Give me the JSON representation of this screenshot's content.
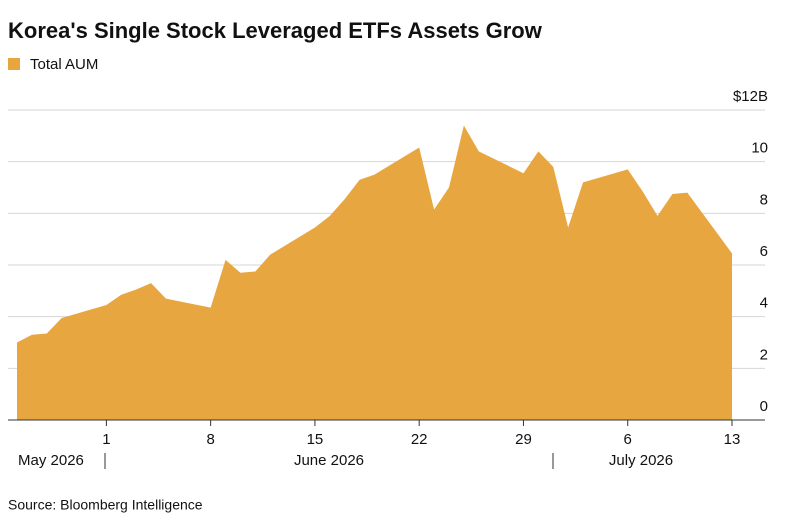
{
  "chart_data": {
    "type": "area",
    "title": "Korea's Single Stock Leveraged ETFs Assets Grow",
    "source": "Source: Bloomberg Intelligence",
    "series": [
      {
        "name": "Total AUM",
        "color": "#e8a640",
        "x": [
          "2026-05-26",
          "2026-05-27",
          "2026-05-28",
          "2026-05-29",
          "2026-06-01",
          "2026-06-02",
          "2026-06-03",
          "2026-06-04",
          "2026-06-05",
          "2026-06-08",
          "2026-06-09",
          "2026-06-10",
          "2026-06-11",
          "2026-06-12",
          "2026-06-15",
          "2026-06-16",
          "2026-06-17",
          "2026-06-18",
          "2026-06-19",
          "2026-06-22",
          "2026-06-23",
          "2026-06-24",
          "2026-06-25",
          "2026-06-26",
          "2026-06-29",
          "2026-06-30",
          "2026-07-01",
          "2026-07-02",
          "2026-07-03",
          "2026-07-06",
          "2026-07-07",
          "2026-07-08",
          "2026-07-09",
          "2026-07-10",
          "2026-07-13"
        ],
        "values": [
          3.0,
          3.3,
          3.35,
          3.95,
          4.45,
          4.85,
          5.05,
          5.3,
          4.7,
          4.35,
          6.2,
          5.7,
          5.75,
          6.4,
          7.45,
          7.9,
          8.55,
          9.3,
          9.5,
          10.55,
          8.15,
          9.0,
          11.4,
          10.4,
          9.55,
          10.4,
          9.8,
          7.45,
          9.2,
          9.7,
          8.85,
          7.9,
          8.75,
          8.8,
          6.45
        ]
      }
    ],
    "xlim": [
      "2026-05-26",
      "2026-07-13"
    ],
    "xticks": [
      {
        "value": "2026-06-01",
        "label": "1"
      },
      {
        "value": "2026-06-08",
        "label": "8"
      },
      {
        "value": "2026-06-15",
        "label": "15"
      },
      {
        "value": "2026-06-22",
        "label": "22"
      },
      {
        "value": "2026-06-29",
        "label": "29"
      },
      {
        "value": "2026-07-06",
        "label": "6"
      },
      {
        "value": "2026-07-13",
        "label": "13"
      }
    ],
    "month_labels": [
      "May 2026",
      "June 2026",
      "July 2026"
    ],
    "ylim": [
      0,
      12
    ],
    "yticks": [
      0,
      2,
      4,
      6,
      8,
      10,
      {
        "value": 12,
        "label": "$12B"
      }
    ],
    "grid": true
  }
}
